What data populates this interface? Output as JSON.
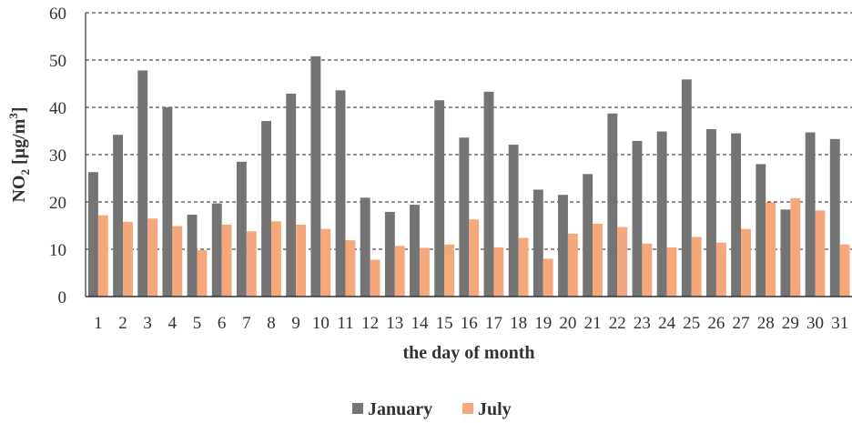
{
  "chart_data": {
    "type": "bar",
    "title": "",
    "xlabel": "the day of month",
    "ylabel_main": "NO",
    "ylabel_sub": "2",
    "ylabel_unit_pre": " [µg/m",
    "ylabel_unit_sup": "3",
    "ylabel_unit_post": "]",
    "ylim": [
      0,
      60
    ],
    "yticks": [
      "0",
      "10",
      "20",
      "30",
      "40",
      "50",
      "60"
    ],
    "grid": "horizontal dashed",
    "legend_position": "bottom",
    "categories": [
      "1",
      "2",
      "3",
      "4",
      "5",
      "6",
      "7",
      "8",
      "9",
      "10",
      "11",
      "12",
      "13",
      "14",
      "15",
      "16",
      "17",
      "18",
      "19",
      "20",
      "21",
      "22",
      "23",
      "24",
      "25",
      "26",
      "27",
      "28",
      "29",
      "30",
      "31"
    ],
    "series": [
      {
        "name": "January",
        "color": "#747474",
        "values": [
          26.3,
          34.2,
          47.8,
          40.0,
          17.3,
          19.7,
          28.5,
          37.1,
          42.9,
          50.8,
          43.6,
          20.9,
          17.9,
          19.4,
          41.5,
          33.6,
          43.3,
          32.1,
          22.6,
          21.5,
          25.9,
          38.7,
          32.9,
          34.9,
          45.9,
          35.4,
          34.5,
          28.0,
          18.4,
          34.7,
          33.3
        ]
      },
      {
        "name": "July",
        "color": "#f4a87c",
        "values": [
          17.2,
          15.8,
          16.5,
          14.9,
          9.8,
          15.2,
          13.8,
          15.9,
          15.2,
          14.3,
          11.9,
          7.8,
          10.7,
          10.3,
          11.0,
          16.3,
          10.4,
          12.4,
          8.0,
          13.3,
          15.4,
          14.7,
          11.2,
          10.4,
          12.6,
          11.4,
          14.3,
          19.9,
          20.8,
          18.2,
          11.0
        ]
      }
    ]
  }
}
